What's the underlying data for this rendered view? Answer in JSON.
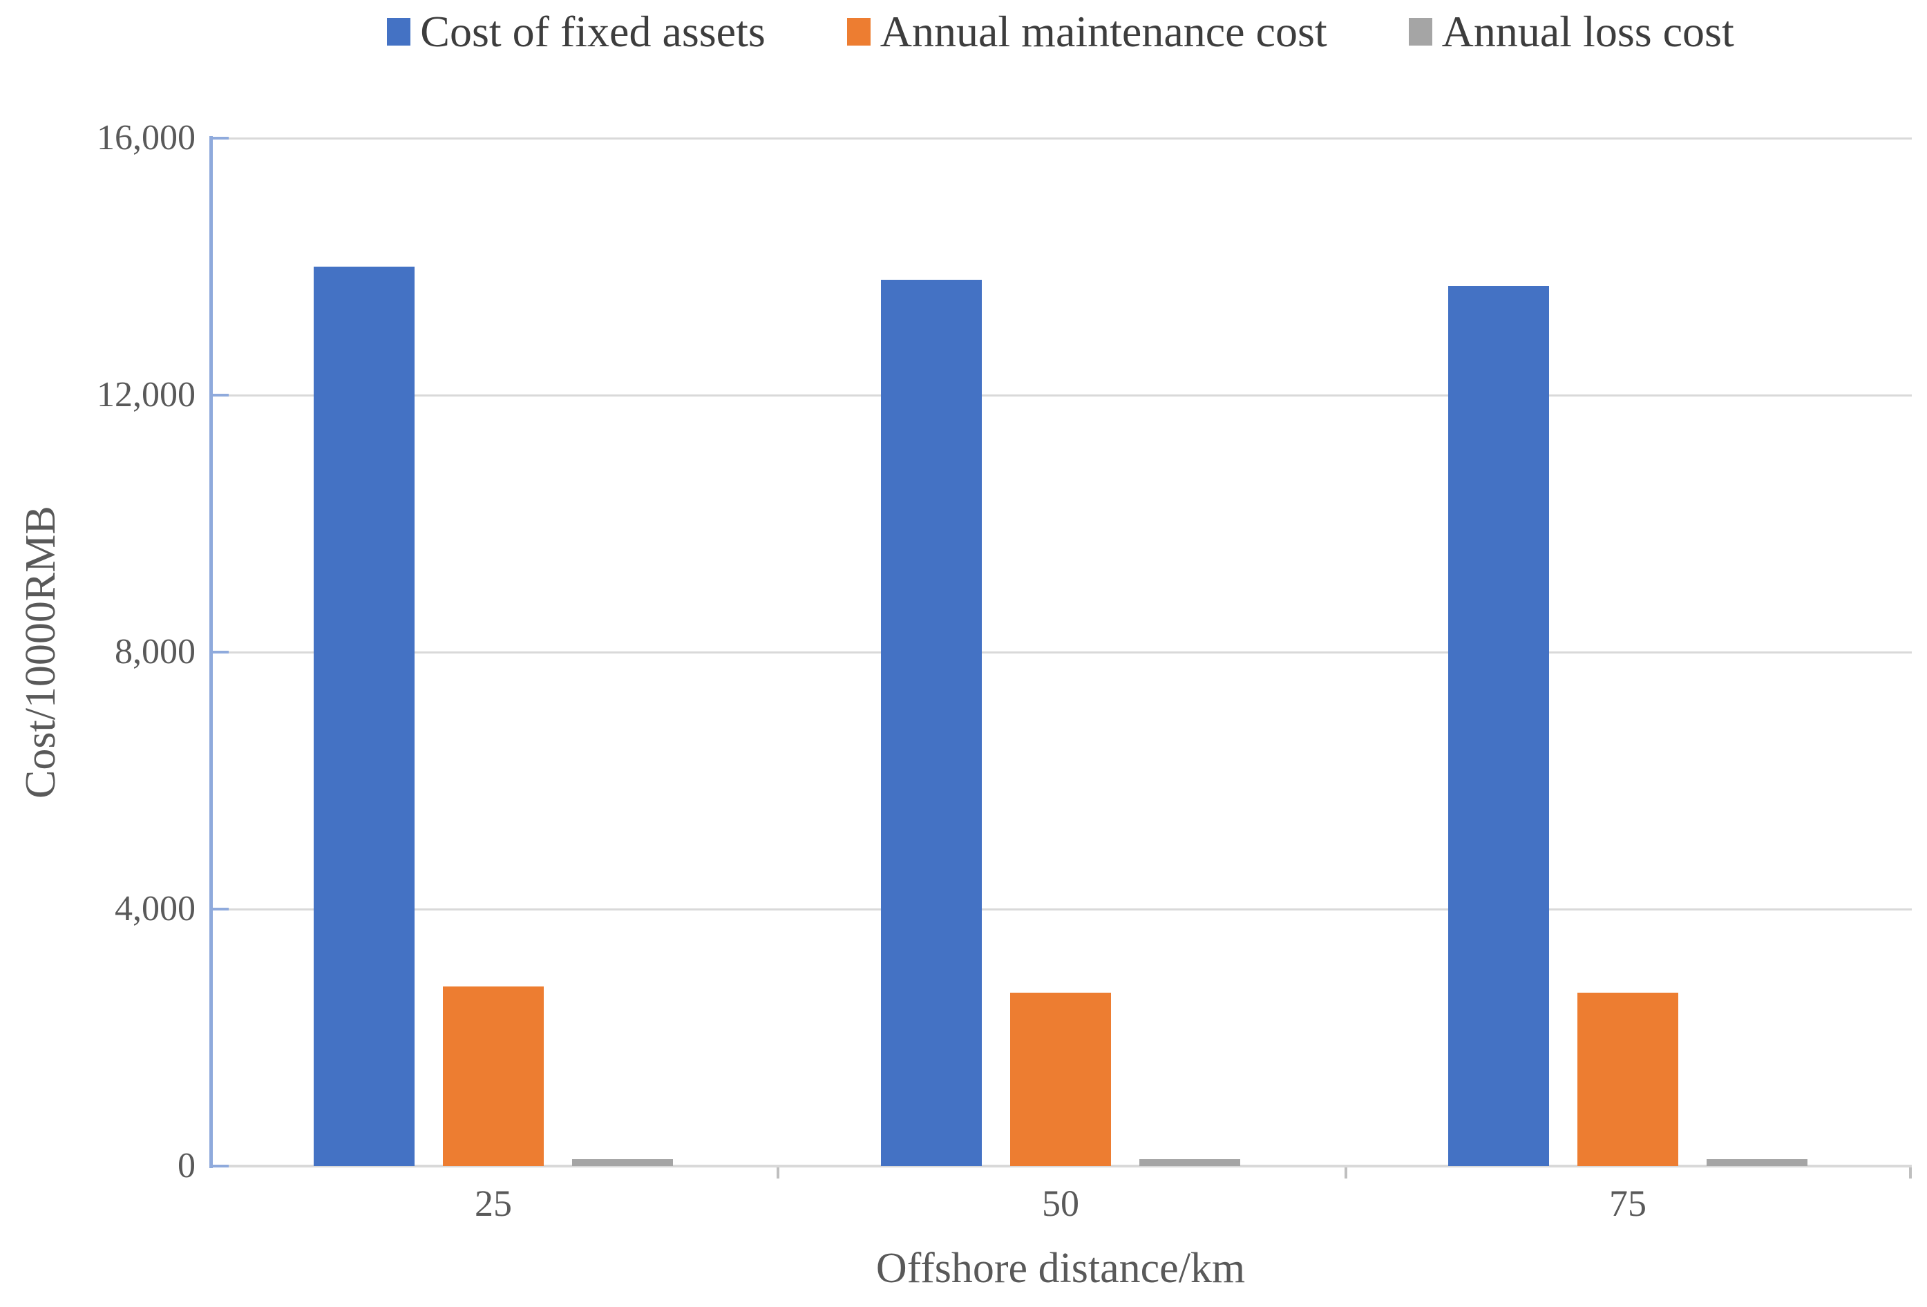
{
  "figure": {
    "background": "#ffffff"
  },
  "chart_data": {
    "type": "bar",
    "title": "",
    "categories": [
      "25",
      "50",
      "75"
    ],
    "series": [
      {
        "name": "Cost of fixed assets",
        "color": "#4472C4",
        "values": [
          14000,
          13800,
          13700
        ]
      },
      {
        "name": "Annual maintenance cost",
        "color": "#ED7D31",
        "values": [
          2800,
          2700,
          2700
        ]
      },
      {
        "name": "Annual loss cost",
        "color": "#A5A5A5",
        "values": [
          110,
          110,
          110
        ]
      }
    ],
    "xlabel": "Offshore distance/km",
    "ylabel": "Cost/10000RMB",
    "ylim": [
      0,
      16000
    ],
    "ytick_interval": 4000,
    "ytick_labels": [
      "16,000",
      "12,000",
      "8,000",
      "4,000",
      "0"
    ],
    "grid": true,
    "legend_position": "top",
    "axis_colors": {
      "y_axis_line": "#8FAADC",
      "gridline": "#D9D9D9",
      "x_axis_line": "#D9D9D9",
      "x_tick_mark": "#BFBFBF",
      "tick_label": "#595959"
    }
  }
}
